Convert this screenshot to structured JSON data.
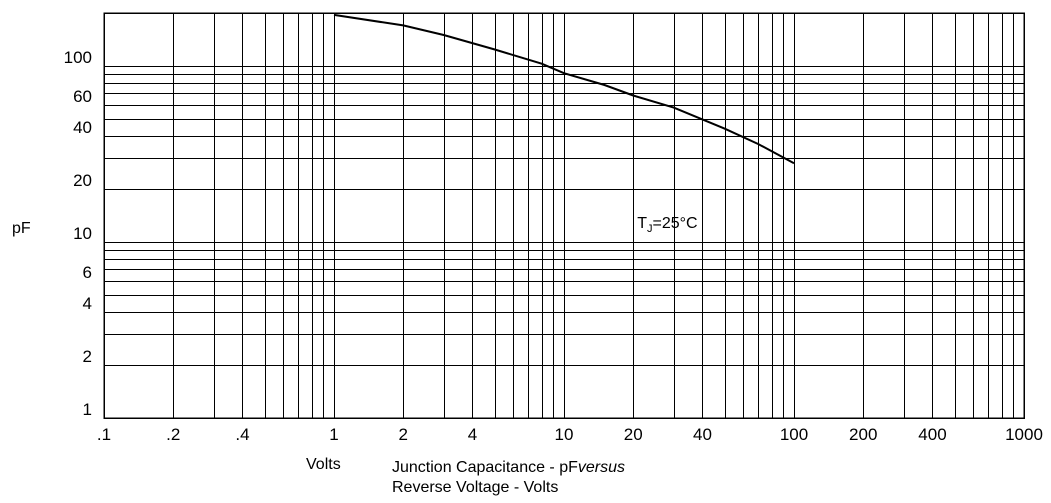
{
  "chart_data": {
    "type": "line",
    "x_scale": "log",
    "y_scale": "log",
    "xlim": [
      0.1,
      1000
    ],
    "ylim": [
      1,
      200
    ],
    "x_ticks": [
      0.1,
      0.2,
      0.4,
      1,
      2,
      4,
      10,
      20,
      40,
      100,
      200,
      400,
      1000
    ],
    "x_tick_labels": [
      ".1",
      ".2",
      ".4",
      "1",
      "2",
      "4",
      "10",
      "20",
      "40",
      "100",
      "200",
      "400",
      "1000"
    ],
    "y_ticks": [
      1,
      2,
      4,
      6,
      10,
      20,
      40,
      60,
      100
    ],
    "y_tick_labels": [
      "1",
      "2",
      "4",
      "6",
      "10",
      "20",
      "40",
      "60",
      "100"
    ],
    "x_grid": [
      0.1,
      0.2,
      0.3,
      0.4,
      0.5,
      0.6,
      0.7,
      0.8,
      0.9,
      1,
      2,
      3,
      4,
      5,
      6,
      7,
      8,
      9,
      10,
      20,
      30,
      40,
      50,
      60,
      70,
      80,
      90,
      100,
      200,
      300,
      400,
      500,
      600,
      700,
      800,
      900,
      1000
    ],
    "y_grid": [
      1,
      2,
      3,
      4,
      5,
      6,
      7,
      8,
      9,
      10,
      20,
      30,
      40,
      50,
      60,
      70,
      80,
      90,
      100
    ],
    "grid": true,
    "ylabel": "pF",
    "xlabel": "Volts",
    "annotation": {
      "main": "T",
      "sub": "J",
      "rest": "=25°C",
      "x": 20,
      "y": 13
    },
    "series": [
      {
        "x": [
          1,
          2,
          3,
          5,
          8,
          10,
          15,
          20,
          30,
          50,
          70,
          100
        ],
        "y": [
          195,
          170,
          150,
          124,
          103,
          91,
          78,
          68,
          58,
          44,
          36,
          28
        ]
      }
    ]
  },
  "caption": {
    "line1": "Junction Capacitance - pF",
    "line1_italic": "versus",
    "line2": "Reverse Voltage - Volts"
  }
}
